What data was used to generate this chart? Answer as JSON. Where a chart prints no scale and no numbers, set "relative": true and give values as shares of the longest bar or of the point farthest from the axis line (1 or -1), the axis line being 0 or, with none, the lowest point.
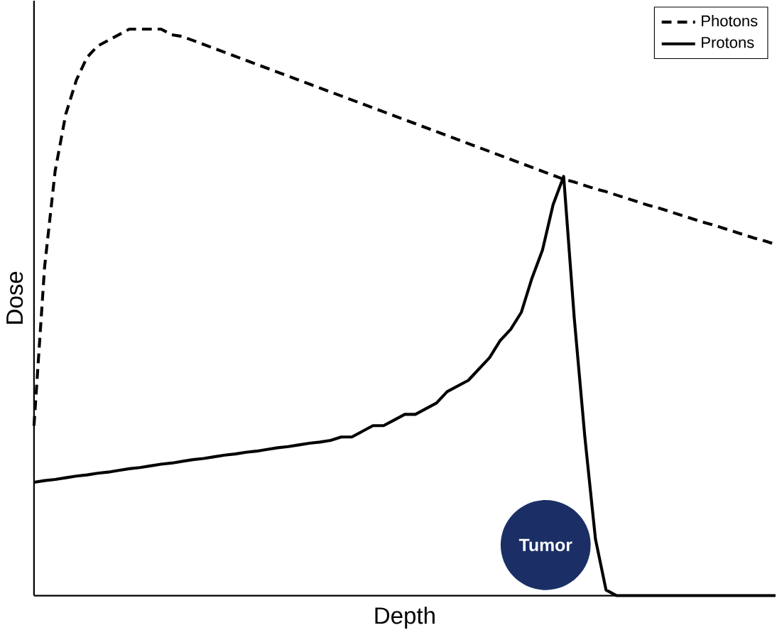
{
  "chart_data": {
    "type": "line",
    "xlabel": "Depth",
    "ylabel": "Dose",
    "relative": true,
    "legend": "top right",
    "categories": [
      null,
      null,
      null,
      null,
      null,
      null,
      null,
      null,
      null,
      null,
      null,
      null,
      null,
      null,
      null,
      null,
      null,
      null,
      null,
      null,
      null,
      null,
      null,
      null,
      null,
      null,
      null,
      null,
      null,
      null,
      null,
      null,
      null,
      null,
      null,
      null,
      null,
      null,
      null,
      null,
      null,
      null,
      null,
      null,
      null,
      null,
      null,
      null,
      null,
      null,
      null,
      null,
      null,
      null,
      null,
      null,
      null,
      null,
      null,
      null,
      null,
      null,
      null,
      null,
      null,
      null,
      null,
      null,
      null,
      null,
      null
    ],
    "series": [
      {
        "name": "Photons",
        "color": "#000000",
        "line_style": "dashed",
        "values": [
          0.3,
          0.58,
          0.75,
          0.85,
          0.91,
          0.95,
          0.97,
          0.98,
          0.99,
          1.0,
          1.0,
          1.0,
          1.0,
          0.99,
          0.987,
          0.98,
          0.973,
          0.966,
          0.959,
          0.952,
          0.945,
          0.938,
          0.931,
          0.924,
          0.917,
          0.91,
          0.903,
          0.896,
          0.889,
          0.882,
          0.875,
          0.868,
          0.861,
          0.854,
          0.847,
          0.84,
          0.833,
          0.826,
          0.819,
          0.812,
          0.805,
          0.798,
          0.791,
          0.784,
          0.777,
          0.77,
          0.763,
          0.756,
          0.749,
          0.742,
          0.735,
          0.73,
          0.724,
          0.718,
          0.713,
          0.707,
          0.701,
          0.695,
          0.689,
          0.684,
          0.678,
          0.672,
          0.666,
          0.66,
          0.655,
          0.649,
          0.643,
          0.637,
          0.631,
          0.626,
          0.62
        ]
      },
      {
        "name": "Protons",
        "color": "#000000",
        "line_style": "solid",
        "values": [
          0.2,
          0.203,
          0.205,
          0.208,
          0.211,
          0.213,
          0.216,
          0.218,
          0.221,
          0.224,
          0.226,
          0.229,
          0.232,
          0.234,
          0.237,
          0.24,
          0.242,
          0.245,
          0.248,
          0.25,
          0.253,
          0.255,
          0.258,
          0.261,
          0.263,
          0.266,
          0.269,
          0.271,
          0.274,
          0.28,
          0.28,
          0.29,
          0.3,
          0.3,
          0.31,
          0.32,
          0.32,
          0.33,
          0.34,
          0.36,
          0.37,
          0.38,
          0.4,
          0.42,
          0.45,
          0.47,
          0.5,
          0.56,
          0.61,
          0.69,
          0.74,
          0.49,
          0.28,
          0.1,
          0.01,
          0,
          0,
          0,
          0,
          0,
          0,
          0,
          0,
          0,
          0,
          0,
          0,
          0,
          0,
          0,
          0
        ]
      }
    ],
    "annotations": [
      "Tumor"
    ]
  }
}
